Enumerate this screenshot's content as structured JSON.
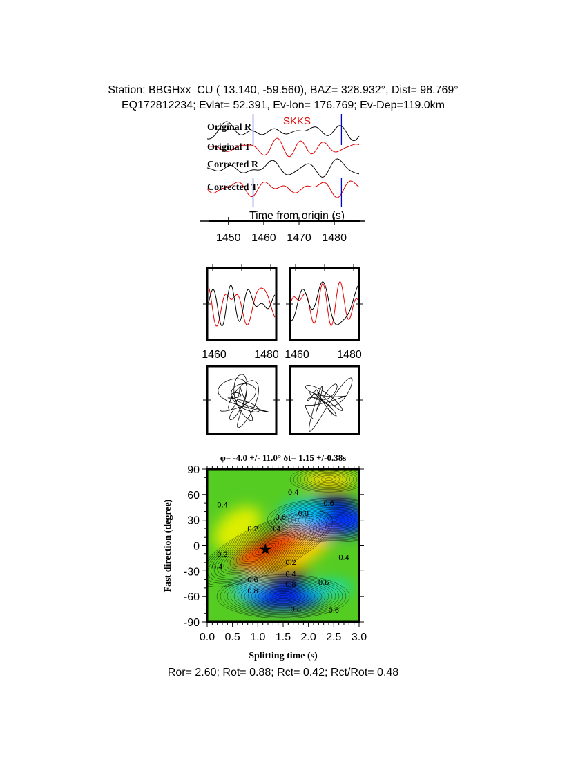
{
  "header": {
    "line1": "Station: BBGHxx_CU (  13.140,  -59.560), BAZ=  328.932°, Dist=   98.769°",
    "line2": "EQ172812234; Evlat=  52.391, Ev-lon= 176.769; Ev-Dep=119.0km"
  },
  "chart_data": [
    {
      "type": "line",
      "phase_label": "SKKS",
      "trace_labels": [
        "Original R",
        "Original T",
        "Corrected R",
        "Corrected T"
      ],
      "trace_colors": [
        "#000000",
        "#e00000",
        "#000000",
        "#e00000"
      ],
      "xlabel": "Time from origin (s)",
      "xticks": [
        1450,
        1460,
        1470,
        1480
      ],
      "xlim": [
        1444,
        1487
      ],
      "window_markers": [
        1457,
        1482
      ],
      "marker_color": "#0000cc"
    },
    {
      "type": "line",
      "panels": [
        "waveforms-original",
        "waveforms-corrected"
      ],
      "xticks": [
        1460,
        1480
      ],
      "xlim": [
        1457,
        1482
      ]
    },
    {
      "type": "scatter",
      "panels": [
        "particle-motion-original",
        "particle-motion-corrected"
      ]
    },
    {
      "type": "heatmap",
      "title": "φ= -4.0 +/- 11.0° δt= 1.15 +/-0.38s",
      "xlabel": "Splitting time (s)",
      "ylabel": "Fast direction (degree)",
      "xlim": [
        0,
        3
      ],
      "ylim": [
        -90,
        90
      ],
      "xticks": [
        "0.0",
        "0.5",
        "1.0",
        "1.5",
        "2.0",
        "2.5",
        "3.0"
      ],
      "yticks": [
        "90",
        "60",
        "30",
        "0",
        "-30",
        "-60",
        "-90"
      ],
      "best_fit": {
        "dt": 1.15,
        "phi": -4.0
      },
      "contour_labels": [
        {
          "text": "0.4",
          "dt": 0.3,
          "phi": 48
        },
        {
          "text": "0.4",
          "dt": 1.7,
          "phi": 63
        },
        {
          "text": "0.6",
          "dt": 2.4,
          "phi": 50
        },
        {
          "text": "0.8",
          "dt": 1.9,
          "phi": 38
        },
        {
          "text": "0.2",
          "dt": 0.9,
          "phi": 20
        },
        {
          "text": "0.4",
          "dt": 1.35,
          "phi": 20
        },
        {
          "text": "0.6",
          "dt": 1.45,
          "phi": 24
        },
        {
          "text": "0.2",
          "dt": 0.3,
          "phi": -10
        },
        {
          "text": "0.4",
          "dt": 0.2,
          "phi": -25
        },
        {
          "text": "0.2",
          "dt": 1.65,
          "phi": -20
        },
        {
          "text": "0.4",
          "dt": 2.7,
          "phi": -14
        },
        {
          "text": "0.4",
          "dt": 1.65,
          "phi": -30
        },
        {
          "text": "0.6",
          "dt": 0.9,
          "phi": -40
        },
        {
          "text": "0.8",
          "dt": 1.65,
          "phi": -45
        },
        {
          "text": "0.6",
          "dt": 2.3,
          "phi": -43
        },
        {
          "text": "0.8",
          "dt": 0.9,
          "phi": -50
        },
        {
          "text": "0.8",
          "dt": 1.75,
          "phi": -75
        },
        {
          "text": "0.6",
          "dt": 2.5,
          "phi": -76
        }
      ]
    }
  ],
  "footer": "Ror= 2.60; Rot= 0.88; Rct= 0.42; Rct/Rot= 0.48"
}
